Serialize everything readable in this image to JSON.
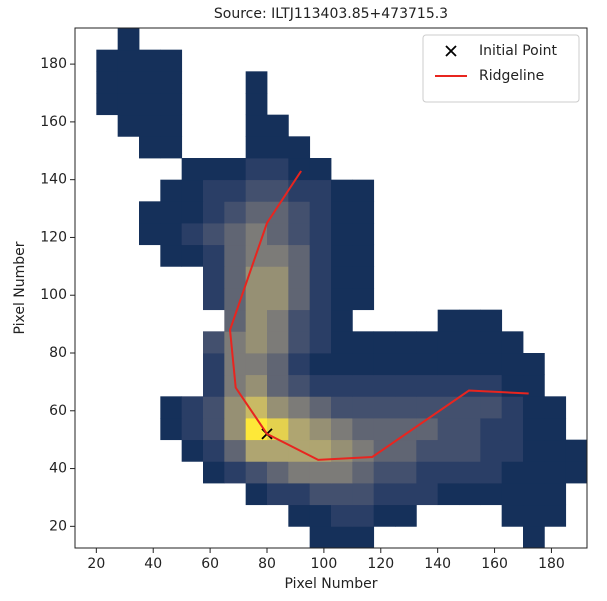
{
  "chart_data": {
    "type": "image",
    "title": "Source: ILTJ113403.85+473715.3",
    "x_label": "Pixel Number",
    "y_label": "Pixel Number",
    "xlim": [
      12.5,
      192.5
    ],
    "ylim": [
      12.5,
      192.5
    ],
    "xticks": [
      20,
      40,
      60,
      80,
      100,
      120,
      140,
      160,
      180
    ],
    "yticks": [
      20,
      40,
      60,
      80,
      100,
      120,
      140,
      160,
      180
    ],
    "colormap": "cividis",
    "zlim": [
      0,
      10
    ],
    "legend": "upper right",
    "z": [
      [
        null,
        null,
        null,
        null,
        null,
        null,
        null,
        null,
        null,
        null,
        null,
        1,
        1,
        1,
        null,
        null,
        null,
        null,
        null,
        null,
        null,
        1,
        null,
        null
      ],
      [
        null,
        null,
        null,
        null,
        null,
        null,
        null,
        null,
        null,
        null,
        1,
        1,
        2,
        2,
        1,
        1,
        null,
        null,
        null,
        null,
        1,
        1,
        1,
        null
      ],
      [
        null,
        null,
        null,
        null,
        null,
        null,
        null,
        null,
        1,
        2,
        2,
        3,
        3,
        3,
        2,
        2,
        2,
        1,
        1,
        1,
        1,
        1,
        1,
        null
      ],
      [
        null,
        null,
        null,
        null,
        null,
        null,
        1,
        2,
        3,
        4,
        5,
        5,
        5,
        4,
        3,
        3,
        2,
        2,
        2,
        2,
        1,
        1,
        1,
        1
      ],
      [
        null,
        null,
        null,
        null,
        null,
        1,
        2,
        4,
        7,
        7,
        7,
        7,
        6,
        5,
        4,
        4,
        3,
        3,
        3,
        2,
        2,
        1,
        1,
        1
      ],
      [
        null,
        null,
        null,
        null,
        1,
        2,
        3,
        6,
        10,
        9,
        7,
        6,
        5,
        4,
        4,
        4,
        4,
        3,
        3,
        2,
        2,
        1,
        1,
        null
      ],
      [
        null,
        null,
        null,
        null,
        1,
        2,
        3,
        6,
        8,
        6,
        5,
        4,
        3,
        3,
        3,
        3,
        3,
        3,
        3,
        3,
        2,
        1,
        1,
        null
      ],
      [
        null,
        null,
        null,
        null,
        null,
        null,
        2,
        5,
        6,
        4,
        3,
        2,
        2,
        2,
        2,
        2,
        2,
        2,
        2,
        2,
        1,
        1,
        null,
        null
      ],
      [
        null,
        null,
        null,
        null,
        null,
        null,
        2,
        5,
        5,
        4,
        2,
        1,
        1,
        1,
        1,
        1,
        1,
        1,
        1,
        1,
        1,
        1,
        null,
        null
      ],
      [
        null,
        null,
        null,
        null,
        null,
        null,
        3,
        5,
        6,
        5,
        3,
        2,
        1,
        1,
        1,
        1,
        1,
        1,
        1,
        1,
        1,
        null,
        null,
        null
      ],
      [
        null,
        null,
        null,
        null,
        null,
        null,
        null,
        4,
        6,
        5,
        3,
        2,
        1,
        null,
        null,
        null,
        null,
        1,
        1,
        1,
        null,
        null,
        null,
        null
      ],
      [
        null,
        null,
        null,
        null,
        null,
        null,
        2,
        4,
        6,
        6,
        4,
        2,
        1,
        1,
        null,
        null,
        null,
        null,
        null,
        null,
        null,
        null,
        null,
        null
      ],
      [
        null,
        null,
        null,
        null,
        null,
        null,
        2,
        4,
        6,
        6,
        4,
        2,
        1,
        1,
        null,
        null,
        null,
        null,
        null,
        null,
        null,
        null,
        null,
        null
      ],
      [
        null,
        null,
        null,
        null,
        1,
        1,
        2,
        4,
        5,
        5,
        4,
        2,
        1,
        1,
        null,
        null,
        null,
        null,
        null,
        null,
        null,
        null,
        null,
        null
      ],
      [
        null,
        null,
        null,
        1,
        1,
        2,
        3,
        4,
        5,
        4,
        3,
        2,
        1,
        1,
        null,
        null,
        null,
        null,
        null,
        null,
        null,
        null,
        null,
        null
      ],
      [
        null,
        null,
        null,
        1,
        1,
        1,
        2,
        3,
        4,
        4,
        3,
        2,
        1,
        1,
        null,
        null,
        null,
        null,
        null,
        null,
        null,
        null,
        null,
        null
      ],
      [
        null,
        null,
        null,
        null,
        1,
        1,
        2,
        2,
        3,
        3,
        2,
        2,
        1,
        1,
        null,
        null,
        null,
        null,
        null,
        null,
        null,
        null,
        null,
        null
      ],
      [
        null,
        null,
        null,
        null,
        null,
        1,
        1,
        1,
        2,
        2,
        1,
        1,
        null,
        null,
        null,
        null,
        null,
        null,
        null,
        null,
        null,
        null,
        null,
        null
      ],
      [
        null,
        null,
        null,
        1,
        1,
        null,
        null,
        null,
        1,
        1,
        1,
        null,
        null,
        null,
        null,
        null,
        null,
        null,
        null,
        null,
        null,
        null,
        null,
        null
      ],
      [
        null,
        null,
        1,
        1,
        1,
        null,
        null,
        null,
        1,
        1,
        null,
        null,
        null,
        null,
        null,
        null,
        null,
        null,
        null,
        null,
        null,
        null,
        null,
        null
      ],
      [
        null,
        1,
        1,
        1,
        1,
        null,
        null,
        null,
        1,
        null,
        null,
        null,
        null,
        null,
        null,
        null,
        null,
        null,
        null,
        null,
        null,
        null,
        null,
        null
      ],
      [
        null,
        1,
        1,
        1,
        1,
        null,
        null,
        null,
        1,
        null,
        null,
        null,
        null,
        null,
        null,
        null,
        null,
        null,
        null,
        null,
        null,
        null,
        null,
        null
      ],
      [
        null,
        1,
        1,
        1,
        1,
        null,
        null,
        null,
        null,
        null,
        null,
        null,
        null,
        null,
        null,
        null,
        null,
        null,
        null,
        null,
        null,
        null,
        null,
        null
      ],
      [
        null,
        null,
        1,
        null,
        null,
        null,
        null,
        null,
        null,
        null,
        null,
        null,
        null,
        null,
        null,
        null,
        null,
        null,
        null,
        null,
        null,
        null,
        null,
        null
      ]
    ],
    "series": [
      {
        "name": "Initial Point",
        "type": "scatter",
        "marker": "x",
        "color": "#000000",
        "x": [
          80
        ],
        "y": [
          52
        ]
      },
      {
        "name": "Ridgeline",
        "type": "line",
        "color": "#e8251f",
        "x": [
          92,
          80,
          67,
          69,
          80,
          98,
          117,
          151,
          172
        ],
        "y": [
          143,
          125,
          88,
          68,
          52,
          43,
          44,
          67,
          66
        ]
      }
    ]
  }
}
